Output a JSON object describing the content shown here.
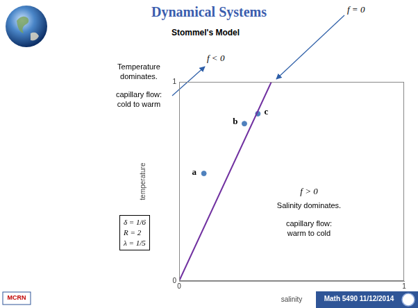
{
  "slide": {
    "title": "Dynamical Systems",
    "subtitle": "Stommel's Model",
    "footer": "Math 5490  11/12/2014",
    "logo": "MCRN"
  },
  "chart_data": {
    "type": "scatter",
    "xlabel": "salinity",
    "ylabel": "temperature",
    "xlim": [
      0,
      1
    ],
    "ylim": [
      0,
      1
    ],
    "xticks": [
      0,
      1
    ],
    "yticks": [
      0,
      1
    ],
    "grid": false,
    "series": [
      {
        "type": "line",
        "color": "#7030a0",
        "line_style": "solid",
        "x": [
          0,
          0.41
        ],
        "values": [
          0,
          1
        ]
      },
      {
        "type": "scatter",
        "color": "#4f81bd",
        "marker": "circle",
        "x": [
          0.11,
          0.29,
          0.35
        ],
        "values": [
          0.54,
          0.79,
          0.84
        ],
        "point_labels": [
          "a",
          "b",
          "c"
        ]
      }
    ],
    "annotations": {
      "f_zero": "f = 0",
      "f_negative": {
        "label": "f < 0",
        "lines": [
          "Temperature",
          "dominates.",
          "capillary flow:",
          "cold to warm"
        ]
      },
      "f_positive": {
        "label": "f > 0",
        "lines": [
          "Salinity dominates.",
          "capillary flow:",
          "warm to cold"
        ]
      },
      "parameters": [
        "δ = 1/6",
        "R = 2",
        "λ = 1/5"
      ]
    }
  }
}
